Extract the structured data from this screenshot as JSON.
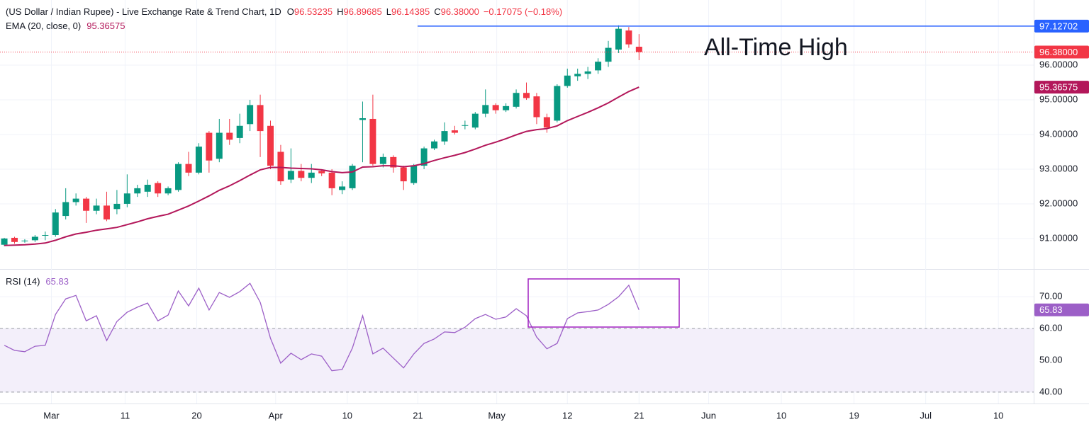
{
  "chart_data": [
    {
      "type": "candlestick",
      "title": "(US Dollar / Indian Rupee) - Live Exchange Rate & Trend Chart, 1D",
      "ohlc_legend": [
        {
          "label": "O",
          "value": "96.53235"
        },
        {
          "label": "H",
          "value": "96.89685"
        },
        {
          "label": "L",
          "value": "96.14385"
        },
        {
          "label": "C",
          "value": "96.38000"
        }
      ],
      "change": "−0.17075 (−0.18%)",
      "up_color": "#089981",
      "down_color": "#f23645",
      "open": [
        90.82,
        91.02,
        90.92,
        90.95,
        91.08,
        91.1,
        91.65,
        92.05,
        92.15,
        91.8,
        91.95,
        91.85,
        92.0,
        92.3,
        92.35,
        92.6,
        92.3,
        92.4,
        93.15,
        92.9,
        94.05,
        93.3,
        94.05,
        93.9,
        94.3,
        94.85,
        94.25,
        93.5,
        92.7,
        92.95,
        92.75,
        92.95,
        92.9,
        92.4,
        92.45,
        94.42,
        94.45,
        93.15,
        93.35,
        93.05,
        92.6,
        93.1,
        93.6,
        93.8,
        94.12,
        94.25,
        94.2,
        94.6,
        94.85,
        94.7,
        94.8,
        95.2,
        95.1,
        94.5,
        94.4,
        95.4,
        95.68,
        95.75,
        95.85,
        96.1,
        96.45,
        97.0,
        96.53235
      ],
      "high": [
        91.02,
        91.05,
        90.98,
        91.1,
        91.2,
        91.85,
        92.45,
        92.3,
        92.2,
        92.15,
        92.35,
        92.4,
        92.85,
        92.55,
        92.7,
        92.65,
        92.5,
        93.2,
        93.5,
        93.75,
        94.1,
        94.45,
        94.45,
        94.6,
        95.0,
        95.15,
        94.4,
        93.7,
        93.6,
        93.15,
        93.15,
        93.0,
        93.0,
        92.65,
        93.15,
        94.95,
        95.15,
        93.45,
        93.4,
        93.1,
        93.15,
        93.65,
        93.85,
        94.35,
        94.25,
        94.4,
        94.65,
        95.3,
        94.9,
        94.9,
        95.3,
        95.5,
        95.2,
        94.6,
        95.45,
        95.9,
        95.9,
        95.95,
        96.2,
        96.7,
        97.15,
        97.1,
        96.89685
      ],
      "low": [
        90.78,
        90.85,
        90.88,
        90.9,
        90.95,
        91.05,
        91.55,
        91.95,
        91.45,
        91.7,
        91.5,
        91.7,
        91.9,
        92.2,
        92.2,
        92.2,
        92.25,
        92.35,
        92.8,
        92.85,
        92.9,
        93.2,
        93.7,
        93.75,
        94.1,
        93.35,
        93.0,
        92.55,
        92.6,
        92.65,
        92.6,
        92.8,
        92.25,
        92.28,
        92.4,
        93.2,
        93.1,
        93.05,
        92.9,
        92.4,
        92.55,
        93.0,
        93.55,
        93.7,
        94.0,
        94.15,
        94.15,
        94.5,
        94.6,
        94.65,
        94.75,
        95.0,
        94.3,
        94.05,
        94.35,
        95.35,
        95.55,
        95.6,
        95.75,
        95.95,
        96.35,
        96.5,
        96.14385
      ],
      "close": [
        91.0,
        90.9,
        90.94,
        91.05,
        91.1,
        91.75,
        92.05,
        92.15,
        91.8,
        91.95,
        91.55,
        92.0,
        92.3,
        92.45,
        92.55,
        92.3,
        92.45,
        93.15,
        92.9,
        93.65,
        93.25,
        94.05,
        93.85,
        94.25,
        94.85,
        94.1,
        93.1,
        92.65,
        92.95,
        92.75,
        92.9,
        92.88,
        92.45,
        92.5,
        93.1,
        94.47,
        93.15,
        93.35,
        93.05,
        92.65,
        93.1,
        93.6,
        93.8,
        94.1,
        94.05,
        94.27,
        94.6,
        94.85,
        94.7,
        94.82,
        95.2,
        95.05,
        94.5,
        94.2,
        95.4,
        95.7,
        95.75,
        95.82,
        96.1,
        96.5,
        97.05,
        96.6,
        96.38
      ],
      "series": [
        {
          "name": "EMA (20, close, 0)",
          "color": "#b3175a",
          "values": [
            90.8,
            90.81,
            90.82,
            90.84,
            90.87,
            90.95,
            91.05,
            91.13,
            91.18,
            91.24,
            91.28,
            91.32,
            91.4,
            91.48,
            91.57,
            91.64,
            91.7,
            91.82,
            91.94,
            92.08,
            92.23,
            92.39,
            92.52,
            92.67,
            92.83,
            92.98,
            93.05,
            93.05,
            93.03,
            93.02,
            93.01,
            92.98,
            92.93,
            92.9,
            92.92,
            93.06,
            93.07,
            93.1,
            93.1,
            93.07,
            93.1,
            93.16,
            93.25,
            93.33,
            93.4,
            93.48,
            93.58,
            93.69,
            93.78,
            93.88,
            93.99,
            94.09,
            94.14,
            94.17,
            94.25,
            94.4,
            94.52,
            94.64,
            94.77,
            94.91,
            95.08,
            95.24,
            95.36575
          ]
        }
      ],
      "last_price": {
        "value": 96.38,
        "label": "96.38000"
      },
      "ath_level": 97.12702,
      "ath_color": "#2962ff",
      "annotation": "All-Time High",
      "xlim": [
        -0.42,
        100.55
      ],
      "xticks": [
        {
          "value": 4.6,
          "label": "Mar"
        },
        {
          "value": 11.8,
          "label": "11"
        },
        {
          "value": 18.8,
          "label": "20"
        },
        {
          "value": 26.5,
          "label": "Apr"
        },
        {
          "value": 33.5,
          "label": "10"
        },
        {
          "value": 40.4,
          "label": "21"
        },
        {
          "value": 48.1,
          "label": "May"
        },
        {
          "value": 55.0,
          "label": "12"
        },
        {
          "value": 62.0,
          "label": "21"
        },
        {
          "value": 68.8,
          "label": "Jun"
        },
        {
          "value": 75.9,
          "label": "10"
        },
        {
          "value": 83.0,
          "label": "19"
        },
        {
          "value": 90.0,
          "label": "Jul"
        },
        {
          "value": 97.1,
          "label": "10"
        }
      ],
      "ylim": [
        90.12,
        97.88
      ],
      "yticks": [
        {
          "value": 91,
          "label": "91.00000"
        },
        {
          "value": 92,
          "label": "92.00000"
        },
        {
          "value": 93,
          "label": "93.00000"
        },
        {
          "value": 94,
          "label": "94.00000"
        },
        {
          "value": 95,
          "label": "95.00000"
        },
        {
          "value": 96,
          "label": "96.00000"
        }
      ],
      "grid": true
    },
    {
      "type": "line",
      "series": [
        {
          "name": "RSI (14)",
          "color": "#9c5fc7",
          "values": [
            54.7,
            53.1,
            52.7,
            54.4,
            54.7,
            64.4,
            69.3,
            70.4,
            62.4,
            64.0,
            56.2,
            62.2,
            65.1,
            66.7,
            68.0,
            62.4,
            64.2,
            71.8,
            67.1,
            72.7,
            65.8,
            71.3,
            69.8,
            71.6,
            74.2,
            68.2,
            56.9,
            49.1,
            52.2,
            50.2,
            52.0,
            51.3,
            46.7,
            47.1,
            53.8,
            64.0,
            52.0,
            53.8,
            50.7,
            47.6,
            52.0,
            55.3,
            56.7,
            58.9,
            58.7,
            60.4,
            63.1,
            64.4,
            62.9,
            63.6,
            66.2,
            64.0,
            57.3,
            53.6,
            55.3,
            63.1,
            64.9,
            65.3,
            65.8,
            67.6,
            70.0,
            73.6,
            65.83
          ]
        }
      ],
      "band": [
        40,
        60
      ],
      "band_color": "#f3effa",
      "ylim": [
        36.4,
        78.7
      ],
      "yticks": [
        {
          "value": 40,
          "label": "40.00"
        },
        {
          "value": 50,
          "label": "50.00"
        },
        {
          "value": 60,
          "label": "60.00"
        },
        {
          "value": 70,
          "label": "70.00"
        }
      ],
      "grid": true
    }
  ]
}
